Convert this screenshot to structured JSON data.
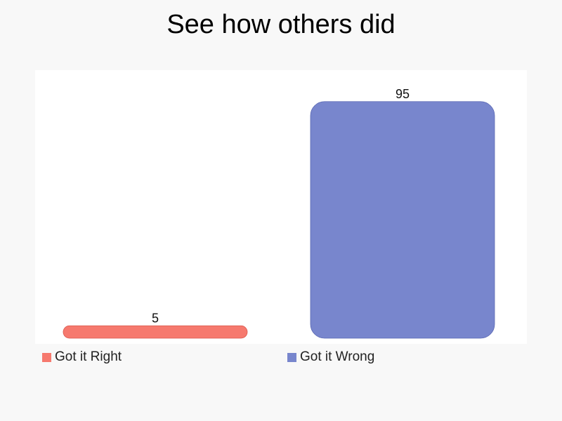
{
  "title": "See how others did",
  "chart_data": {
    "type": "bar",
    "categories": [
      "Got it Right",
      "Got it Wrong"
    ],
    "values": [
      5,
      95
    ],
    "colors": [
      "#f6796e",
      "#7886cd"
    ],
    "ylim": [
      0,
      100
    ],
    "grid": false,
    "legend_position": "bottom",
    "data_labels": true
  },
  "legend": {
    "items": [
      {
        "label": "Got it Right",
        "color": "#f6796e"
      },
      {
        "label": "Got it Wrong",
        "color": "#7886cd"
      }
    ]
  }
}
